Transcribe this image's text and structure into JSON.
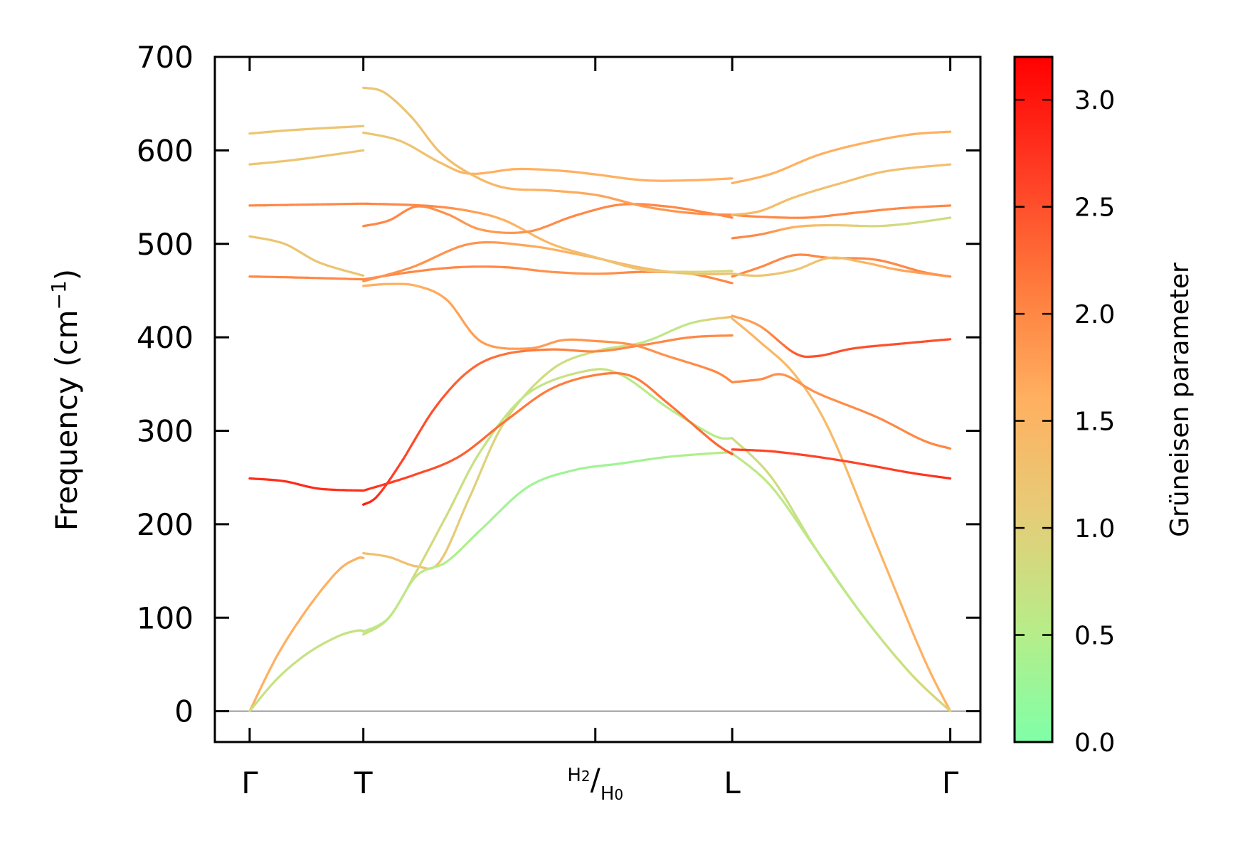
{
  "chart_data": {
    "type": "line",
    "ylabel": "Frequency (cm",
    "ylabel_sup": "−1",
    "ylabel_close": ")",
    "ylim": [
      -33,
      700
    ],
    "yticks": [
      "0",
      "100",
      "200",
      "300",
      "400",
      "500",
      "600",
      "700"
    ],
    "ytick_values": [
      0,
      100,
      200,
      300,
      400,
      500,
      600,
      700
    ],
    "kpoints": [
      {
        "label": "Γ",
        "x": 0.0
      },
      {
        "label": "T",
        "x": 0.49
      },
      {
        "label": "H2/H0",
        "x": 1.49,
        "main": "H",
        "sub1": "2",
        "slash": "/",
        "main2": "H",
        "sub2": "0"
      },
      {
        "label": "L",
        "x": 2.08
      },
      {
        "label": "Γ",
        "x": 3.02
      }
    ],
    "xlim": [
      -0.15,
      3.15
    ],
    "discontinuities": [
      0.49,
      2.08
    ],
    "zero_line": true,
    "colorbar": {
      "title": "Grüneisen parameter",
      "range": [
        0.0,
        3.2
      ],
      "ticks": [
        "0.0",
        "0.5",
        "1.0",
        "1.5",
        "2.0",
        "2.5",
        "3.0"
      ],
      "tick_values": [
        0.0,
        0.5,
        1.0,
        1.5,
        2.0,
        2.5,
        3.0
      ],
      "colors": [
        "#80ffa8",
        "#b8ec88",
        "#e6cc78",
        "#ffb060",
        "#ff7a3c",
        "#ff3c24",
        "#ff0000"
      ]
    },
    "series": [
      {
        "segments": [
          {
            "x": [
              0,
              0.12,
              0.25,
              0.38,
              0.46,
              0.49
            ],
            "y": [
              0,
              60,
              110,
              150,
              163,
              164
            ],
            "g": [
              1.6,
              1.6,
              1.6,
              1.6,
              1.6,
              1.6
            ]
          },
          {
            "x": [
              0.49,
              0.6,
              0.72,
              0.82,
              0.95,
              1.1,
              1.3,
              1.49,
              1.7,
              1.9,
              2.08
            ],
            "y": [
              169,
              165,
              155,
              160,
              230,
              310,
              365,
              385,
              395,
              415,
              422
            ],
            "g": [
              1.3,
              1.3,
              1.3,
              1.2,
              1.0,
              0.9,
              0.8,
              0.7,
              0.6,
              0.6,
              1.4
            ]
          },
          {
            "x": [
              2.08,
              2.2,
              2.35,
              2.5,
              2.7,
              2.9,
              3.02
            ],
            "y": [
              420,
              395,
              360,
              300,
              180,
              60,
              0
            ],
            "g": [
              1.5,
              1.5,
              1.4,
              1.4,
              1.5,
              1.6,
              1.6
            ]
          }
        ]
      },
      {
        "segments": [
          {
            "x": [
              0,
              0.12,
              0.25,
              0.38,
              0.46,
              0.49
            ],
            "y": [
              0,
              35,
              62,
              80,
              86,
              86
            ],
            "g": [
              0.7,
              0.7,
              0.7,
              0.7,
              0.7,
              0.7
            ]
          },
          {
            "x": [
              0.49,
              0.6,
              0.72,
              0.85,
              1.0,
              1.2,
              1.45,
              1.6,
              1.8,
              2.0,
              2.08
            ],
            "y": [
              82,
              100,
              150,
              210,
              280,
              340,
              364,
              360,
              325,
              295,
              292
            ],
            "g": [
              0.7,
              0.8,
              0.9,
              0.8,
              0.7,
              0.6,
              0.8,
              0.6,
              0.5,
              0.5,
              0.6
            ]
          },
          {
            "x": [
              2.08,
              2.25,
              2.45,
              2.65,
              2.85,
              3.02
            ],
            "y": [
              292,
              250,
              170,
              100,
              40,
              0
            ],
            "g": [
              0.8,
              0.8,
              0.7,
              0.7,
              0.8,
              1.0
            ]
          }
        ]
      },
      {
        "segments": [
          {
            "x": [
              0.49,
              0.6,
              0.72,
              0.85,
              1.0,
              1.2,
              1.4,
              1.6,
              1.8,
              2.0,
              2.08
            ],
            "y": [
              85,
              100,
              145,
              160,
              195,
              240,
              258,
              265,
              272,
              276,
              277
            ],
            "g": [
              0.6,
              0.6,
              0.6,
              0.5,
              0.4,
              0.3,
              0.3,
              0.3,
              0.4,
              0.5,
              0.6
            ]
          },
          {
            "x": [
              2.08,
              2.25,
              2.45,
              2.65,
              2.85,
              3.02
            ],
            "y": [
              276,
              240,
              170,
              100,
              40,
              0
            ],
            "g": [
              0.6,
              0.6,
              0.6,
              0.6,
              0.8,
              1.0
            ]
          }
        ]
      },
      {
        "segments": [
          {
            "x": [
              0,
              0.15,
              0.3,
              0.49
            ],
            "y": [
              249,
              246,
              238,
              236
            ],
            "g": [
              2.8,
              2.8,
              2.8,
              2.8
            ]
          },
          {
            "x": [
              0.49,
              0.7,
              0.9,
              1.1,
              1.3,
              1.5,
              1.65,
              1.8,
              2.0,
              2.08
            ],
            "y": [
              236,
              252,
              272,
              310,
              345,
              360,
              358,
              330,
              288,
              275
            ],
            "g": [
              2.8,
              2.6,
              2.4,
              2.2,
              2.1,
              2.1,
              2.1,
              2.2,
              2.3,
              2.4
            ]
          },
          {
            "x": [
              2.08,
              2.25,
              2.45,
              2.65,
              2.85,
              3.02
            ],
            "y": [
              280,
              278,
              272,
              264,
              255,
              249
            ],
            "g": [
              2.6,
              2.6,
              2.6,
              2.6,
              2.7,
              2.8
            ]
          }
        ]
      },
      {
        "segments": [
          {
            "x": [
              0.49,
              0.55,
              0.65,
              0.8,
              0.95,
              1.1,
              1.3,
              1.5,
              1.7,
              1.9,
              2.08
            ],
            "y": [
              221,
              230,
              265,
              325,
              365,
              382,
              387,
              385,
              392,
              400,
              402
            ],
            "g": [
              3.0,
              2.8,
              2.6,
              2.5,
              2.3,
              2.2,
              2.1,
              2.0,
              2.0,
              2.0,
              2.0
            ]
          },
          {
            "x": [
              2.08,
              2.2,
              2.3,
              2.45,
              2.7,
              2.9,
              3.02
            ],
            "y": [
              352,
              355,
              360,
              340,
              315,
              290,
              281
            ],
            "g": [
              2.0,
              2.0,
              1.9,
              1.9,
              2.0,
              2.0,
              2.0
            ]
          }
        ]
      },
      {
        "segments": [
          {
            "x": [
              0.49,
              0.6,
              0.72,
              0.85,
              1.0,
              1.2,
              1.35,
              1.49,
              1.65,
              1.8,
              2.0,
              2.08
            ],
            "y": [
              455,
              457,
              455,
              440,
              395,
              388,
              397,
              396,
              392,
              380,
              364,
              352
            ],
            "g": [
              1.6,
              1.6,
              1.6,
              1.7,
              1.8,
              1.8,
              1.8,
              1.9,
              1.9,
              1.9,
              2.0,
              2.0
            ]
          },
          {
            "x": [
              2.08,
              2.2,
              2.35,
              2.45,
              2.6,
              2.8,
              3.02
            ],
            "y": [
              423,
              412,
              383,
              380,
              388,
              393,
              398
            ],
            "g": [
              1.7,
              1.8,
              2.4,
              2.5,
              2.5,
              2.5,
              2.5
            ]
          }
        ]
      },
      {
        "segments": [
          {
            "x": [
              0,
              0.2,
              0.49
            ],
            "y": [
              465,
              464,
              462
            ],
            "g": [
              2.0,
              2.0,
              2.0
            ]
          },
          {
            "x": [
              0.49,
              0.7,
              0.9,
              1.1,
              1.3,
              1.5,
              1.7,
              1.9,
              2.08
            ],
            "y": [
              462,
              470,
              475,
              475,
              470,
              468,
              470,
              468,
              458
            ],
            "g": [
              2.0,
              2.0,
              2.0,
              2.0,
              1.9,
              1.9,
              2.0,
              2.0,
              2.0
            ]
          },
          {
            "x": [
              2.08,
              2.2,
              2.35,
              2.5,
              2.7,
              2.9,
              3.02
            ],
            "y": [
              465,
              475,
              488,
              485,
              483,
              470,
              465
            ],
            "g": [
              2.0,
              2.0,
              2.0,
              2.0,
              2.0,
              2.0,
              2.0
            ]
          }
        ]
      },
      {
        "segments": [
          {
            "x": [
              0,
              0.15,
              0.3,
              0.49
            ],
            "y": [
              508,
              500,
              480,
              466
            ],
            "g": [
              1.2,
              1.2,
              1.2,
              1.2
            ]
          },
          {
            "x": [
              0.49,
              0.7,
              0.95,
              1.2,
              1.45,
              1.7,
              1.9,
              2.08
            ],
            "y": [
              460,
              475,
              500,
              498,
              487,
              474,
              468,
              468
            ],
            "g": [
              1.9,
              1.9,
              1.9,
              1.7,
              1.5,
              1.4,
              1.3,
              1.3
            ]
          },
          {
            "x": [
              2.08,
              2.2,
              2.35,
              2.5,
              2.65,
              2.8,
              3.02
            ],
            "y": [
              468,
              466,
              472,
              485,
              480,
              472,
              465
            ],
            "g": [
              1.3,
              1.2,
              1.2,
              1.3,
              1.5,
              1.7,
              1.9
            ]
          }
        ]
      },
      {
        "segments": [
          {
            "x": [
              0,
              0.25,
              0.49
            ],
            "y": [
              541,
              542,
              543
            ],
            "g": [
              2.0,
              2.0,
              2.0
            ]
          },
          {
            "x": [
              0.49,
              0.65,
              0.8,
              0.95,
              1.1,
              1.3,
              1.5,
              1.7,
              1.9,
              2.08
            ],
            "y": [
              543,
              542,
              540,
              535,
              525,
              500,
              485,
              472,
              470,
              471
            ],
            "g": [
              2.0,
              2.0,
              2.0,
              1.8,
              1.6,
              1.4,
              1.3,
              1.2,
              1.0,
              0.8
            ]
          },
          {
            "x": [
              2.08,
              2.2,
              2.4,
              2.6,
              2.8,
              3.02
            ],
            "y": [
              531,
              529,
              528,
              533,
              538,
              541
            ],
            "g": [
              2.0,
              2.0,
              2.0,
              2.0,
              2.0,
              2.0
            ]
          }
        ]
      },
      {
        "segments": [
          {
            "x": [
              0.49,
              0.6,
              0.72,
              0.85,
              1.0,
              1.2,
              1.4,
              1.6,
              1.8,
              2.0,
              2.08
            ],
            "y": [
              519,
              525,
              540,
              532,
              515,
              513,
              530,
              542,
              540,
              532,
              528
            ],
            "g": [
              2.0,
              2.0,
              2.0,
              1.9,
              1.8,
              1.9,
              2.0,
              2.0,
              2.0,
              2.0,
              2.0
            ]
          },
          {
            "x": [
              2.08,
              2.2,
              2.35,
              2.5,
              2.7,
              2.85,
              3.02
            ],
            "y": [
              506,
              510,
              518,
              520,
              519,
              522,
              528
            ],
            "g": [
              2.0,
              2.0,
              1.6,
              1.2,
              0.9,
              0.8,
              0.8
            ]
          }
        ]
      },
      {
        "segments": [
          {
            "x": [
              0,
              0.2,
              0.49
            ],
            "y": [
              618,
              622,
              626
            ],
            "g": [
              1.2,
              1.2,
              1.2
            ]
          },
          {
            "x": [
              0.49,
              0.65,
              0.82,
              0.95,
              1.15,
              1.35,
              1.5,
              1.7,
              1.9,
              2.08
            ],
            "y": [
              619,
              610,
              587,
              575,
              580,
              578,
              574,
              568,
              568,
              570
            ],
            "g": [
              1.2,
              1.2,
              1.3,
              1.6,
              1.6,
              1.6,
              1.6,
              1.6,
              1.6,
              1.6
            ]
          },
          {
            "x": [
              2.08,
              2.25,
              2.45,
              2.65,
              2.85,
              3.02
            ],
            "y": [
              565,
              575,
              595,
              608,
              617,
              620
            ],
            "g": [
              1.6,
              1.6,
              1.6,
              1.6,
              1.6,
              1.6
            ]
          }
        ]
      },
      {
        "segments": [
          {
            "x": [
              0,
              0.2,
              0.49
            ],
            "y": [
              585,
              590,
              600
            ],
            "g": [
              1.2,
              1.2,
              1.2
            ]
          },
          {
            "x": [
              0.49,
              0.58,
              0.7,
              0.82,
              0.95,
              1.1,
              1.3,
              1.5,
              1.7,
              1.9,
              2.08
            ],
            "y": [
              667,
              662,
              635,
              598,
              575,
              560,
              557,
              552,
              540,
              533,
              531
            ],
            "g": [
              1.2,
              1.2,
              1.2,
              1.3,
              1.4,
              1.5,
              1.6,
              1.7,
              1.8,
              1.9,
              2.0
            ]
          },
          {
            "x": [
              2.08,
              2.2,
              2.35,
              2.55,
              2.75,
              3.02
            ],
            "y": [
              531,
              535,
              550,
              565,
              578,
              585
            ],
            "g": [
              1.5,
              1.4,
              1.3,
              1.3,
              1.3,
              1.3
            ]
          }
        ]
      }
    ]
  }
}
